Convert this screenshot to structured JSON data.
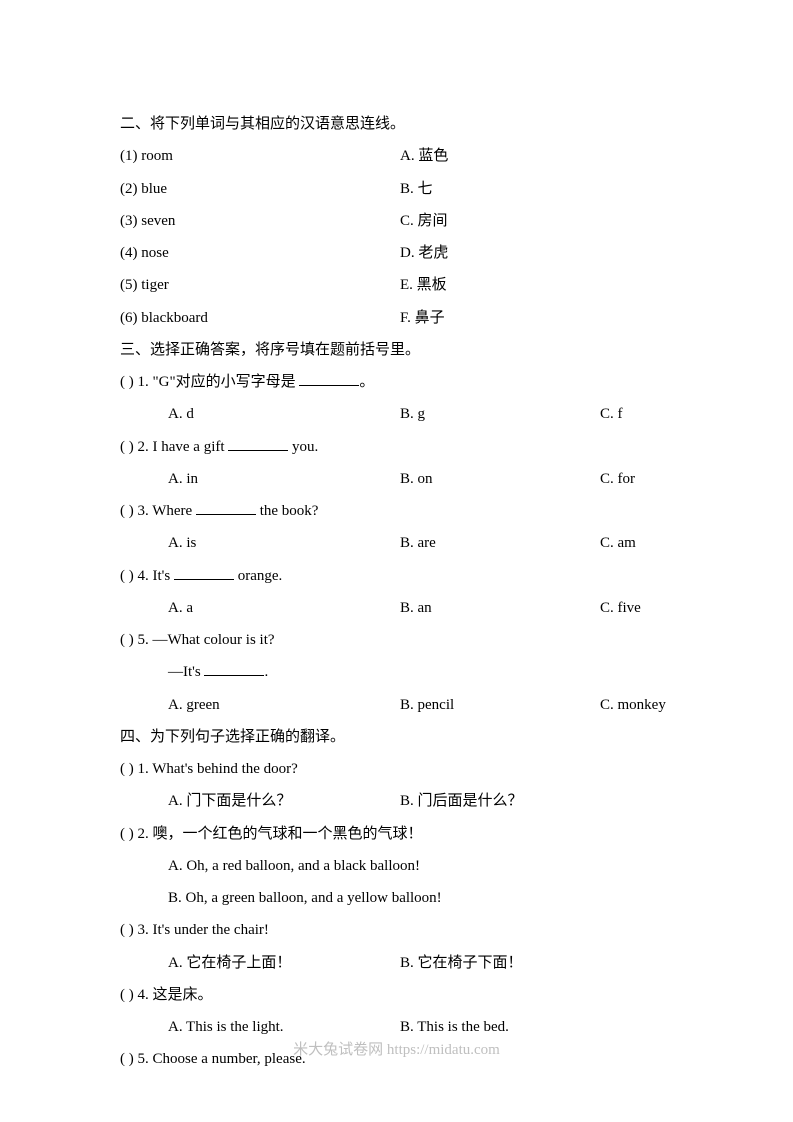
{
  "section2": {
    "title": "二、将下列单词与其相应的汉语意思连线。",
    "pairs": [
      {
        "left": "(1) room",
        "right": "A.  蓝色"
      },
      {
        "left": "(2) blue",
        "right": "B.  七"
      },
      {
        "left": "(3) seven",
        "right": "C.  房间"
      },
      {
        "left": "(4) nose",
        "right": "D.  老虎"
      },
      {
        "left": "(5) tiger",
        "right": "E.  黑板"
      },
      {
        "left": "(6) blackboard",
        "right": "F.  鼻子"
      }
    ]
  },
  "section3": {
    "title": "三、选择正确答案，将序号填在题前括号里。",
    "q1": {
      "prefix": "(    ) 1. \"G\"对应的小写字母是  ",
      "suffix": "。",
      "a": "A. d",
      "b": "B. g",
      "c": "C. f"
    },
    "q2": {
      "prefix": "(    ) 2. I have a gift ",
      "suffix": " you.",
      "a": "A. in",
      "b": "B. on",
      "c": "C. for"
    },
    "q3": {
      "prefix": "(    ) 3. Where ",
      "suffix": " the book?",
      "a": "A. is",
      "b": "B. are",
      "c": "C. am"
    },
    "q4": {
      "prefix": "(    ) 4. It's ",
      "suffix": " orange.",
      "a": "A. a",
      "b": "B. an",
      "c": "C. five"
    },
    "q5": {
      "line1": "(    ) 5. —What colour is it?",
      "line2_prefix": "—It's ",
      "line2_suffix": ".",
      "a": "A. green",
      "b": "B. pencil",
      "c": "C. monkey"
    }
  },
  "section4": {
    "title": "四、为下列句子选择正确的翻译。",
    "q1": {
      "text": "(    ) 1. What's behind the door?",
      "a": "A.  门下面是什么？",
      "b": "B.  门后面是什么？"
    },
    "q2": {
      "text": "(    ) 2.  噢，一个红色的气球和一个黑色的气球！",
      "a": "A. Oh, a red balloon, and a black balloon!",
      "b": "B. Oh, a green balloon, and a yellow balloon!"
    },
    "q3": {
      "text": "(    ) 3. It's under the chair!",
      "a": "A.  它在椅子上面！",
      "b": "B.  它在椅子下面！"
    },
    "q4": {
      "text": "(    ) 4.  这是床。",
      "a": "A. This is the light.",
      "b": "B. This is the bed."
    },
    "q5": {
      "text": "(    ) 5. Choose a number, please."
    }
  },
  "footer": "米大兔试卷网 https://midatu.com"
}
